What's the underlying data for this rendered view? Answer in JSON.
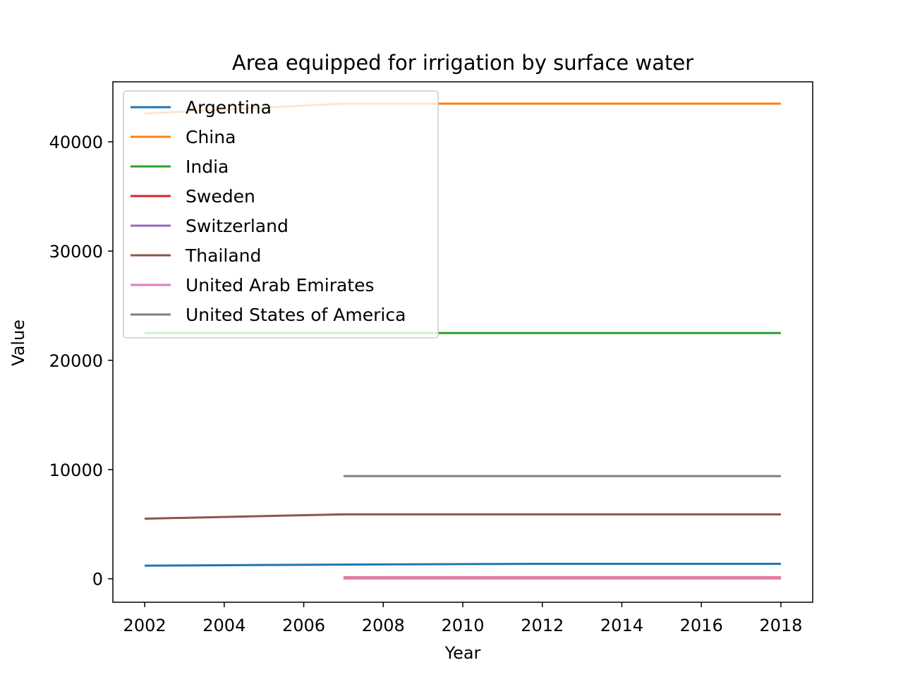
{
  "chart_data": {
    "type": "line",
    "title": "Area equipped for irrigation by surface water",
    "xlabel": "Year",
    "ylabel": "Value",
    "xlim": [
      2001.2,
      2018.8
    ],
    "ylim": [
      -2150,
      45500
    ],
    "xticks": [
      2002,
      2004,
      2006,
      2008,
      2010,
      2012,
      2014,
      2016,
      2018
    ],
    "yticks": [
      0,
      10000,
      20000,
      30000,
      40000
    ],
    "grid": false,
    "legend_position": "upper left",
    "series": [
      {
        "name": "Argentina",
        "color": "#1f77b4",
        "points": [
          [
            2002,
            1200
          ],
          [
            2007,
            1300
          ],
          [
            2012,
            1370
          ],
          [
            2018,
            1370
          ]
        ]
      },
      {
        "name": "China",
        "color": "#ff7f0e",
        "points": [
          [
            2002,
            42600
          ],
          [
            2007,
            43500
          ],
          [
            2012,
            43500
          ],
          [
            2018,
            43500
          ]
        ]
      },
      {
        "name": "India",
        "color": "#2ca02c",
        "points": [
          [
            2002,
            22500
          ],
          [
            2007,
            22500
          ],
          [
            2012,
            22500
          ],
          [
            2018,
            22500
          ]
        ]
      },
      {
        "name": "Sweden",
        "color": "#d62728",
        "points": [
          [
            2007,
            120
          ],
          [
            2012,
            120
          ],
          [
            2018,
            120
          ]
        ]
      },
      {
        "name": "Switzerland",
        "color": "#9467bd",
        "points": [
          [
            2007,
            40
          ],
          [
            2012,
            40
          ],
          [
            2018,
            40
          ]
        ]
      },
      {
        "name": "Thailand",
        "color": "#8c564b",
        "points": [
          [
            2002,
            5500
          ],
          [
            2007,
            5900
          ],
          [
            2012,
            5900
          ],
          [
            2018,
            5900
          ]
        ]
      },
      {
        "name": "United Arab Emirates",
        "color": "#e377c2",
        "points": [
          [
            2007,
            80
          ],
          [
            2012,
            80
          ],
          [
            2018,
            80
          ]
        ]
      },
      {
        "name": "United States of America",
        "color": "#7f7f7f",
        "points": [
          [
            2007,
            9400
          ],
          [
            2012,
            9400
          ],
          [
            2018,
            9400
          ]
        ]
      }
    ]
  }
}
